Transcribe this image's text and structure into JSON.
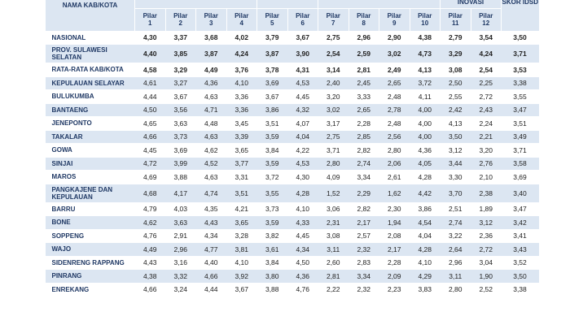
{
  "table": {
    "header": {
      "name": "NAMA KAB/KOTA",
      "groups": {
        "inovasi": "INOVASI",
        "skor": "SKOR IDSD"
      },
      "pilars": [
        [
          "Pilar",
          "1"
        ],
        [
          "Pilar",
          "2"
        ],
        [
          "Pilar",
          "3"
        ],
        [
          "Pilar",
          "4"
        ],
        [
          "Pilar",
          "5"
        ],
        [
          "Pilar",
          "6"
        ],
        [
          "Pilar",
          "7"
        ],
        [
          "Pilar",
          "8"
        ],
        [
          "Pilar",
          "9"
        ],
        [
          "Pilar",
          "10"
        ],
        [
          "Pilar",
          "11"
        ],
        [
          "Pilar",
          "12"
        ]
      ]
    },
    "rows": [
      [
        "NASIONAL",
        "4,30",
        "3,37",
        "3,68",
        "4,02",
        "3,79",
        "3,67",
        "2,75",
        "2,96",
        "2,90",
        "4,38",
        "2,79",
        "3,54",
        "3,50"
      ],
      [
        "PROV. SULAWESI SELATAN",
        "4,40",
        "3,85",
        "3,87",
        "4,24",
        "3,87",
        "3,90",
        "2,54",
        "2,59",
        "3,02",
        "4,73",
        "3,29",
        "4,24",
        "3,71"
      ],
      [
        "RATA-RATA KAB/KOTA",
        "4,58",
        "3,29",
        "4,49",
        "3,76",
        "3,78",
        "4,31",
        "3,14",
        "2,81",
        "2,49",
        "4,13",
        "3,08",
        "2,54",
        "3,53"
      ],
      [
        "KEPULAUAN SELAYAR",
        "4,61",
        "3,27",
        "4,36",
        "4,10",
        "3,69",
        "4,53",
        "2,40",
        "2,45",
        "2,65",
        "3,72",
        "2,50",
        "2,25",
        "3,38"
      ],
      [
        "BULUKUMBA",
        "4,44",
        "3,67",
        "4,63",
        "3,36",
        "3,67",
        "4,45",
        "3,20",
        "3,33",
        "2,48",
        "4,11",
        "2,55",
        "2,72",
        "3,55"
      ],
      [
        "BANTAENG",
        "4,50",
        "3,56",
        "4,71",
        "3,36",
        "3,86",
        "4,32",
        "3,02",
        "2,65",
        "2,78",
        "4,00",
        "2,42",
        "2,43",
        "3,47"
      ],
      [
        "JENEPONTO",
        "4,65",
        "3,63",
        "4,48",
        "3,45",
        "3,51",
        "4,07",
        "3,17",
        "2,28",
        "2,48",
        "4,00",
        "4,13",
        "2,24",
        "3,51"
      ],
      [
        "TAKALAR",
        "4,66",
        "3,73",
        "4,63",
        "3,39",
        "3,59",
        "4,04",
        "2,75",
        "2,85",
        "2,56",
        "4,00",
        "3,50",
        "2,21",
        "3,49"
      ],
      [
        "GOWA",
        "4,45",
        "3,69",
        "4,62",
        "3,65",
        "3,84",
        "4,22",
        "3,71",
        "2,82",
        "2,80",
        "4,36",
        "3,12",
        "3,20",
        "3,71"
      ],
      [
        "SINJAI",
        "4,72",
        "3,99",
        "4,52",
        "3,77",
        "3,59",
        "4,53",
        "2,80",
        "2,74",
        "2,06",
        "4,05",
        "3,44",
        "2,76",
        "3,58"
      ],
      [
        "MAROS",
        "4,69",
        "3,88",
        "4,63",
        "3,31",
        "3,72",
        "4,30",
        "4,09",
        "3,34",
        "2,61",
        "4,28",
        "3,30",
        "2,10",
        "3,69"
      ],
      [
        "PANGKAJENE DAN KEPULAUAN",
        "4,68",
        "4,17",
        "4,74",
        "3,51",
        "3,55",
        "4,28",
        "1,52",
        "2,29",
        "1,62",
        "4,42",
        "3,70",
        "2,38",
        "3,40"
      ],
      [
        "BARRU",
        "4,79",
        "4,03",
        "4,35",
        "4,21",
        "3,73",
        "4,10",
        "3,06",
        "2,82",
        "2,30",
        "3,86",
        "2,51",
        "1,89",
        "3,47"
      ],
      [
        "BONE",
        "4,62",
        "3,63",
        "4,43",
        "3,65",
        "3,59",
        "4,33",
        "2,31",
        "2,17",
        "1,94",
        "4,54",
        "2,74",
        "3,12",
        "3,42"
      ],
      [
        "SOPPENG",
        "4,76",
        "2,91",
        "4,34",
        "3,28",
        "3,82",
        "4,45",
        "3,08",
        "2,57",
        "2,08",
        "4,04",
        "3,22",
        "2,36",
        "3,41"
      ],
      [
        "WAJO",
        "4,49",
        "2,96",
        "4,77",
        "3,81",
        "3,61",
        "4,34",
        "3,11",
        "2,32",
        "2,17",
        "4,28",
        "2,64",
        "2,72",
        "3,43"
      ],
      [
        "SIDENRENG RAPPANG",
        "4,43",
        "3,16",
        "4,40",
        "4,10",
        "3,84",
        "4,50",
        "2,60",
        "2,83",
        "2,28",
        "4,10",
        "2,96",
        "3,04",
        "3,52"
      ],
      [
        "PINRANG",
        "4,38",
        "3,32",
        "4,66",
        "3,92",
        "3,80",
        "4,36",
        "2,81",
        "3,34",
        "2,09",
        "4,29",
        "3,11",
        "1,90",
        "3,50"
      ],
      [
        "ENREKANG",
        "4,66",
        "3,24",
        "4,44",
        "3,67",
        "3,88",
        "4,76",
        "2,22",
        "2,32",
        "2,23",
        "3,83",
        "2,80",
        "2,52",
        "3,38"
      ]
    ]
  }
}
